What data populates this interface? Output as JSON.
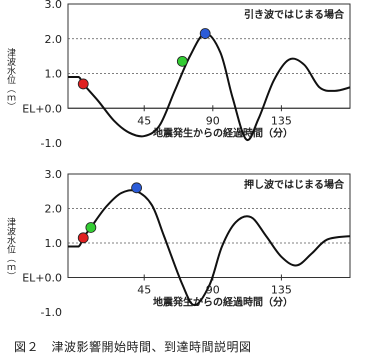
{
  "caption": "図２　津波影響開始時間、到達時間説明図",
  "colors": {
    "line": "#111111",
    "red": "#e02020",
    "green": "#33cc33",
    "blue": "#2a5bd8"
  },
  "chart_data": [
    {
      "type": "line",
      "title": "引き波ではじまる場合",
      "ylabel": "津波水位（ｍ）",
      "xlabel": "地震発生からの経過時間（分）",
      "y_tick_labels": [
        "3.0",
        "2.0",
        "1.0",
        "EL+0.0",
        "-1.0"
      ],
      "y_ticks": [
        3,
        2,
        1,
        0,
        -1
      ],
      "x_tick_labels": [
        "45",
        "90",
        "135"
      ],
      "x_ticks": [
        45,
        90,
        135
      ],
      "xlim": [
        -5,
        180
      ],
      "ylim": [
        -1,
        3
      ],
      "grid": "dotted horizontal at 1.0 and 2.0",
      "x": [
        -5,
        2,
        5,
        15,
        25,
        35,
        45,
        55,
        65,
        75,
        85,
        95,
        103,
        112,
        120,
        130,
        140,
        150,
        160,
        170,
        180
      ],
      "y": [
        0.9,
        0.9,
        0.7,
        0.2,
        -0.35,
        -0.7,
        -0.8,
        -0.5,
        0.5,
        1.5,
        2.15,
        1.6,
        0.3,
        -0.9,
        -0.3,
        0.8,
        1.4,
        1.25,
        0.6,
        0.5,
        0.6
      ],
      "markers": [
        {
          "x": 5,
          "y": 0.7,
          "color": "red"
        },
        {
          "x": 70,
          "y": 1.35,
          "color": "green"
        },
        {
          "x": 85,
          "y": 2.15,
          "color": "blue"
        }
      ]
    },
    {
      "type": "line",
      "title": "押し波ではじまる場合",
      "ylabel": "津波水位（ｍ）",
      "xlabel": "地震発生からの経過時間（分）",
      "y_tick_labels": [
        "3.0",
        "2.0",
        "1.0",
        "EL+0.0",
        "-1.0"
      ],
      "y_ticks": [
        3,
        2,
        1,
        0,
        -1
      ],
      "x_tick_labels": [
        "45",
        "90",
        "135"
      ],
      "x_ticks": [
        45,
        90,
        135
      ],
      "xlim": [
        -5,
        180
      ],
      "ylim": [
        -1,
        3
      ],
      "grid": "dotted horizontal at 1.0 and 2.0",
      "x": [
        -5,
        2,
        5,
        10,
        20,
        30,
        40,
        50,
        58,
        70,
        78,
        88,
        96,
        105,
        115,
        125,
        135,
        145,
        155,
        165,
        180
      ],
      "y": [
        0.9,
        0.9,
        1.15,
        1.45,
        2.05,
        2.45,
        2.5,
        2.1,
        1.2,
        -0.2,
        -0.8,
        -0.2,
        0.9,
        1.6,
        1.75,
        1.2,
        0.6,
        0.35,
        0.7,
        1.1,
        1.2
      ],
      "markers": [
        {
          "x": 5,
          "y": 1.15,
          "color": "red"
        },
        {
          "x": 10,
          "y": 1.45,
          "color": "green"
        },
        {
          "x": 40,
          "y": 2.6,
          "color": "blue"
        }
      ]
    }
  ]
}
